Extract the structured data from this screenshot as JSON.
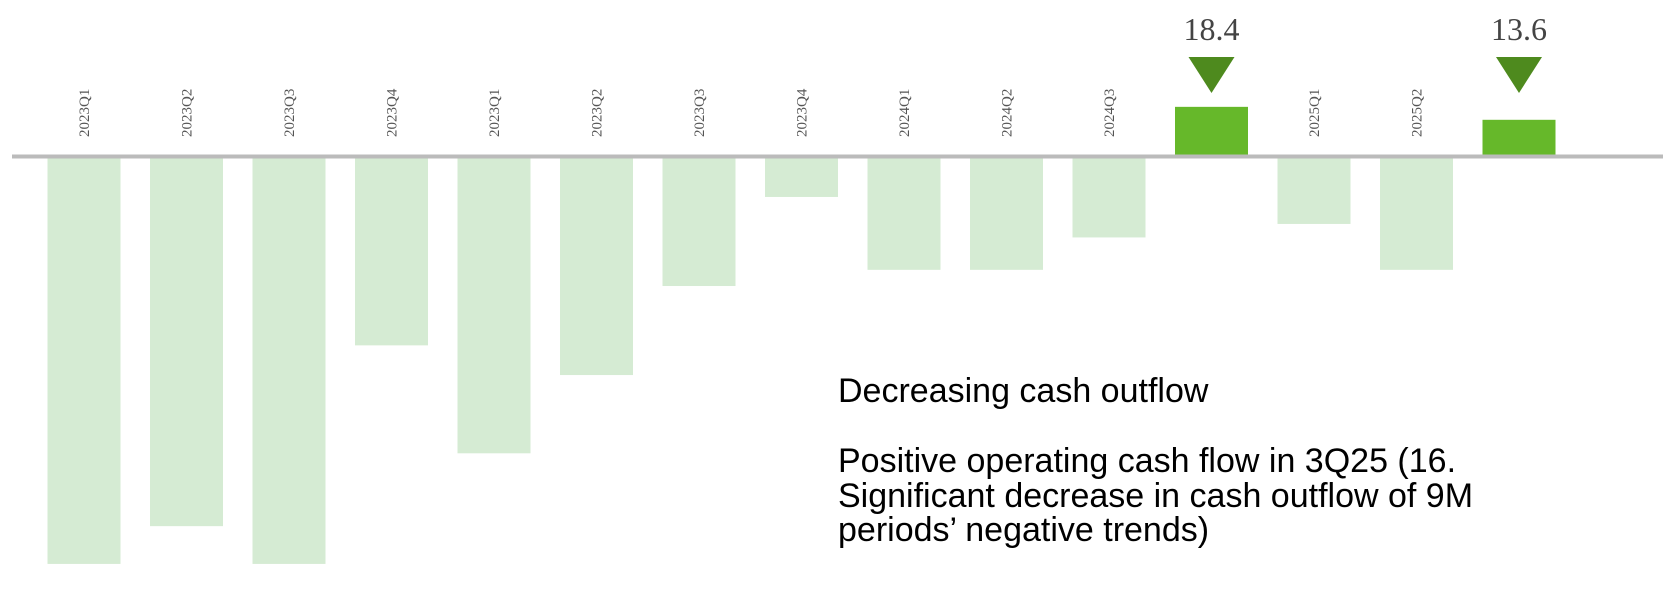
{
  "chart_data": {
    "type": "bar",
    "categories": [
      "2023Q1",
      "2023Q2",
      "2023Q3",
      "2023Q4",
      "2023Q1",
      "2023Q2",
      "2023Q3",
      "2023Q4",
      "2024Q1",
      "2024Q2",
      "2024Q3",
      null,
      "2025Q1",
      "2025Q2",
      null
    ],
    "values": [
      -151,
      -137,
      -151,
      -70,
      -110,
      -81,
      -48,
      -15,
      -42,
      -42,
      -30,
      18.4,
      -25,
      -42,
      13.6
    ],
    "value_labels": [
      null,
      null,
      null,
      null,
      null,
      null,
      null,
      null,
      null,
      null,
      null,
      "18.4",
      null,
      null,
      "13.6"
    ],
    "color": "#66b82a",
    "negative_color": "#d5ebd3",
    "ylim": [
      -164,
      58
    ],
    "annotations": [
      "Decreasing cash outflow",
      "Positive operating cash flow in 3Q25 (16.",
      "Significant decrease in cash outflow of 9M",
      "periods’ negative trends)"
    ]
  }
}
